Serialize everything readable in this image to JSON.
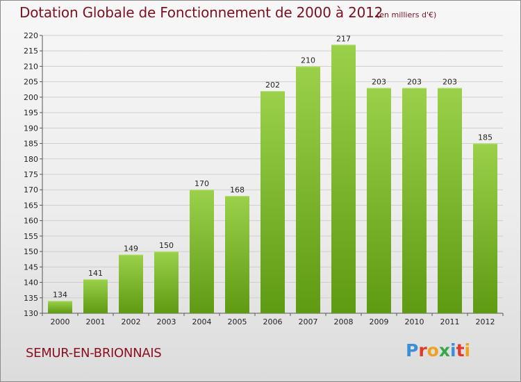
{
  "header": {
    "title": "Dotation Globale de Fonctionnement de 2000 à 2012",
    "unit": "(en milliers d'€)"
  },
  "footer": {
    "commune": "SEMUR-EN-BRIONNAIS",
    "logo_letters": [
      "P",
      "r",
      "o",
      "x",
      "i",
      "t",
      "i"
    ],
    "logo_colors": [
      "#3a8fd6",
      "#e23a2a",
      "#f0a020",
      "#3aa64a",
      "#3a8fd6",
      "#e23a2a",
      "#f0a020"
    ]
  },
  "colors": {
    "bar_top": "#9bd14a",
    "bar_bottom": "#5e9a12",
    "grid": "#cfcfcf",
    "title": "#7a1020"
  },
  "chart_data": {
    "type": "bar",
    "categories": [
      "2000",
      "2001",
      "2002",
      "2003",
      "2004",
      "2005",
      "2006",
      "2007",
      "2008",
      "2009",
      "2010",
      "2011",
      "2012"
    ],
    "values": [
      134,
      141,
      149,
      150,
      170,
      168,
      202,
      210,
      217,
      203,
      203,
      203,
      185
    ],
    "title": "Dotation Globale de Fonctionnement de 2000 à 2012",
    "ylabel": "(en milliers d'€)",
    "ylim": [
      130,
      220
    ],
    "yticks": [
      130,
      135,
      140,
      145,
      150,
      155,
      160,
      165,
      170,
      175,
      180,
      185,
      190,
      195,
      200,
      205,
      210,
      215,
      220
    ],
    "grid": true,
    "data_labels": true
  }
}
